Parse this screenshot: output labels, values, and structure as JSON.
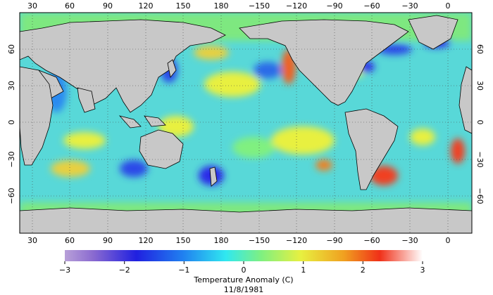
{
  "map": {
    "top_lon_labels": [
      "30",
      "60",
      "90",
      "120",
      "150",
      "180",
      "−150",
      "−120",
      "−90",
      "−60",
      "−30",
      "0"
    ],
    "bottom_lon_labels": [
      "30",
      "60",
      "90",
      "120",
      "150",
      "180",
      "−150",
      "−120",
      "−90",
      "−60",
      "−30",
      "0"
    ],
    "lat_labels": [
      "60",
      "30",
      "0",
      "−30",
      "−60"
    ],
    "projection": "equirectangular",
    "land_color": "#c8c8c8",
    "coast_color": "#000000",
    "grid": "dotted"
  },
  "colorbar": {
    "tick_labels": [
      "−3",
      "−2",
      "−1",
      "0",
      "1",
      "2",
      "3"
    ],
    "title": "Temperature Anomaly (C)",
    "date": "11/8/1981",
    "range": [
      -3,
      3
    ],
    "colors": [
      "#9a7bc0",
      "#2a2ae8",
      "#1f7cf0",
      "#2ee8f0",
      "#7ef07a",
      "#e8f040",
      "#f0a020",
      "#f04020",
      "#ffffff"
    ]
  }
}
